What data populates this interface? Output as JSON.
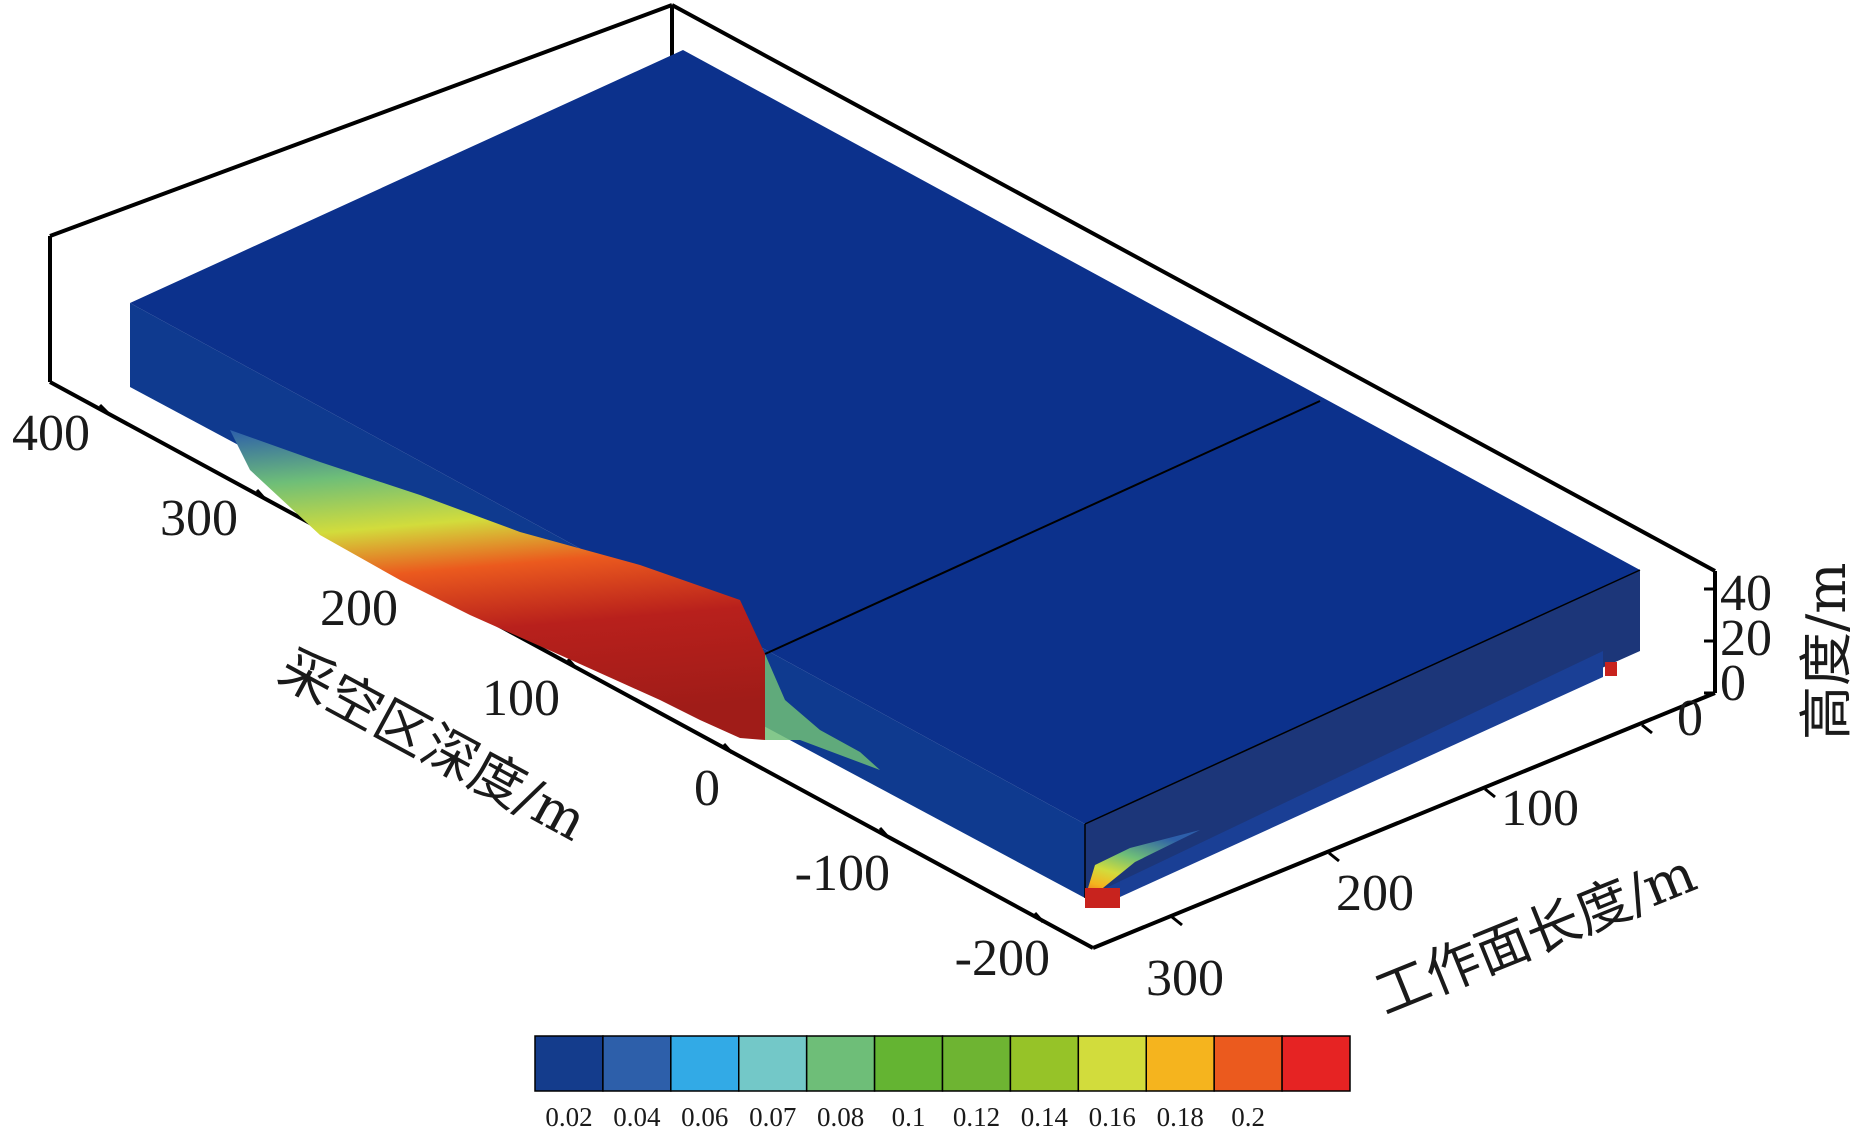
{
  "chart_data": {
    "type": "heatmap",
    "title": "",
    "depth_axis": {
      "label": "采空区深度/m",
      "ticks": [
        "400",
        "300",
        "200",
        "100",
        "0",
        "-100",
        "-200"
      ]
    },
    "length_axis": {
      "label": "工作面长度/m",
      "ticks": [
        "0",
        "100",
        "200",
        "300"
      ]
    },
    "height_axis": {
      "label": "高度/m",
      "ticks": [
        "40",
        "20",
        "0"
      ]
    },
    "colorbar": {
      "levels": [
        "0.02",
        "0.04",
        "0.06",
        "0.07",
        "0.08",
        "0.1",
        "0.12",
        "0.14",
        "0.16",
        "0.18",
        "0.2"
      ],
      "colors": [
        "#143c8c",
        "#2d5faa",
        "#32aae6",
        "#73c8c8",
        "#6ebe78",
        "#64b432",
        "#6eb432",
        "#96c328",
        "#d2dc3c",
        "#f5b41e",
        "#eb5a1e",
        "#e62323"
      ]
    },
    "colors": {
      "top_face": "#0c318c",
      "front_face": "#0f3a8f",
      "side_face": "#1c3679",
      "high_concentration": "#c8231e"
    }
  }
}
